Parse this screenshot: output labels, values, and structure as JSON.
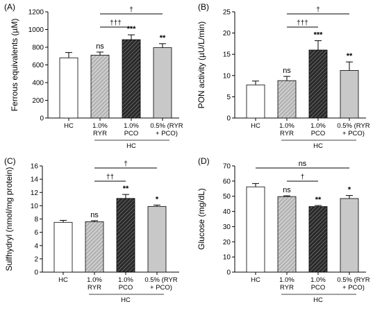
{
  "chart_data": [
    {
      "type": "bar",
      "panel": "(A)",
      "ylabel": "Ferrous equivalents (µM)",
      "ylim": [
        0,
        1200
      ],
      "yticks": [
        0,
        200,
        400,
        600,
        800,
        1000,
        1200
      ],
      "categories": [
        [
          "HC"
        ],
        [
          "1.0%",
          "RYR"
        ],
        [
          "1.0%",
          "PCO"
        ],
        [
          "0.5% (RYR",
          "+ PCO)"
        ]
      ],
      "group_label": "HC",
      "values": [
        680,
        710,
        885,
        795
      ],
      "errors": [
        60,
        35,
        55,
        45
      ],
      "fills": [
        "#ffffff",
        "stripe-light",
        "stripe-dark",
        "#c8c8c8"
      ],
      "significance": [
        "",
        "ns",
        "***",
        "**"
      ],
      "brackets": [
        {
          "from": 1,
          "to": 2,
          "label": "†††"
        },
        {
          "from": 1,
          "to": 3,
          "label": "†"
        }
      ]
    },
    {
      "type": "bar",
      "panel": "(B)",
      "ylabel": "PON activity (µU/L/min)",
      "ylim": [
        0,
        25
      ],
      "yticks": [
        0,
        5,
        10,
        15,
        20,
        25
      ],
      "categories": [
        [
          "HC"
        ],
        [
          "1.0%",
          "RYR"
        ],
        [
          "1.0%",
          "PCO"
        ],
        [
          "0.5% (RYR",
          "+ PCO)"
        ]
      ],
      "group_label": "HC",
      "values": [
        7.8,
        8.8,
        16.0,
        11.2
      ],
      "errors": [
        0.9,
        1.0,
        2.2,
        2.0
      ],
      "fills": [
        "#ffffff",
        "stripe-light",
        "stripe-dark",
        "#c8c8c8"
      ],
      "significance": [
        "",
        "ns",
        "***",
        "**"
      ],
      "brackets": [
        {
          "from": 1,
          "to": 2,
          "label": "†††"
        },
        {
          "from": 1,
          "to": 3,
          "label": "†"
        }
      ]
    },
    {
      "type": "bar",
      "panel": "(C)",
      "ylabel": "Sulfhydryl (nmol/mg protein)",
      "ylim": [
        0,
        16
      ],
      "yticks": [
        0,
        2,
        4,
        6,
        8,
        10,
        12,
        14,
        16
      ],
      "categories": [
        [
          "HC"
        ],
        [
          "1.0%",
          "RYR"
        ],
        [
          "1.0%",
          "PCO"
        ],
        [
          "0.5% (RYR",
          "+ PCO)"
        ]
      ],
      "group_label": "HC",
      "values": [
        7.5,
        7.6,
        11.1,
        9.9
      ],
      "errors": [
        0.3,
        0.15,
        0.6,
        0.2
      ],
      "fills": [
        "#ffffff",
        "stripe-light",
        "stripe-dark",
        "#c8c8c8"
      ],
      "significance": [
        "",
        "ns",
        "**",
        "*"
      ],
      "brackets": [
        {
          "from": 1,
          "to": 2,
          "label": "††"
        },
        {
          "from": 1,
          "to": 3,
          "label": "†"
        }
      ]
    },
    {
      "type": "bar",
      "panel": "(D)",
      "ylabel": "Glucose (mg/dL)",
      "ylim": [
        0,
        70
      ],
      "yticks": [
        0,
        10,
        20,
        30,
        40,
        50,
        60,
        70
      ],
      "categories": [
        [
          "HC"
        ],
        [
          "1.0%",
          "RYR"
        ],
        [
          "1.0%",
          "PCO"
        ],
        [
          "0.5% (RYR",
          "+ PCO)"
        ]
      ],
      "group_label": "HC",
      "values": [
        56.2,
        49.8,
        43.2,
        48.5
      ],
      "errors": [
        2.2,
        0.5,
        0.7,
        2.0
      ],
      "fills": [
        "#ffffff",
        "stripe-light",
        "stripe-dark",
        "#c8c8c8"
      ],
      "significance": [
        "",
        "ns",
        "**",
        "*"
      ],
      "brackets": [
        {
          "from": 1,
          "to": 2,
          "label": "†"
        },
        {
          "from": 0,
          "to": 3,
          "label": "ns"
        }
      ]
    }
  ]
}
